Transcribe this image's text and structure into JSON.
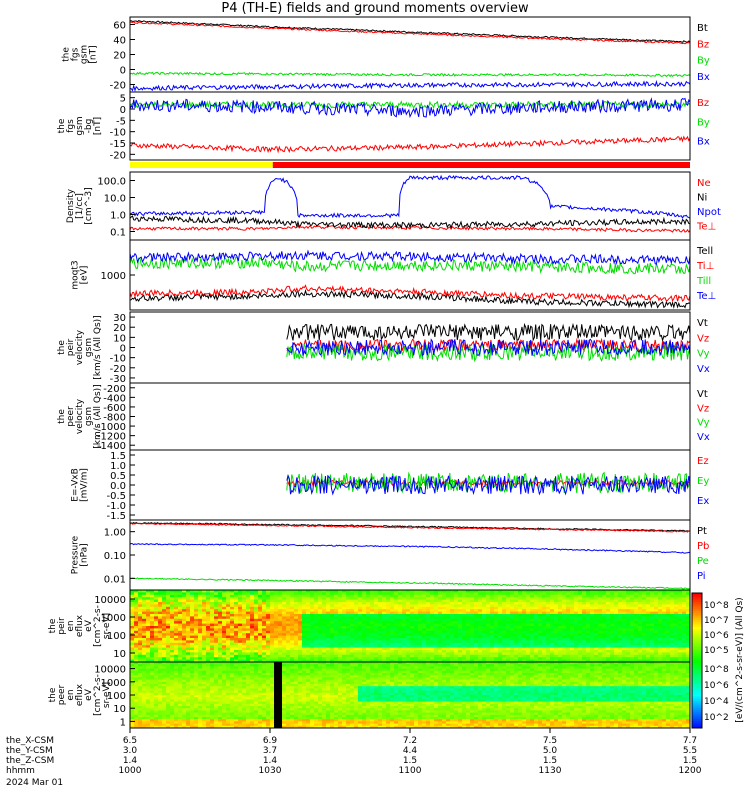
{
  "title": "P4 (TH-E) fields and ground moments overview",
  "colors": {
    "black": "#000000",
    "red": "#ff0000",
    "green": "#00dd00",
    "blue": "#0000ff",
    "yellow": "#ffff00"
  },
  "chart_data": [
    {
      "type": "line",
      "ylabel_lines": [
        "the",
        "fgs",
        "gsm",
        "[nT]"
      ],
      "yticks": [
        "60",
        "40",
        "20",
        "0",
        "-20"
      ],
      "ylim": [
        -25,
        75
      ],
      "series": [
        {
          "name": "Bt",
          "color": "#000000",
          "x": [
            0,
            0.25,
            0.5,
            0.75,
            1
          ],
          "y": [
            70,
            62,
            55,
            48,
            42
          ],
          "noise": 1
        },
        {
          "name": "Bz",
          "color": "#ff0000",
          "x": [
            0,
            0.25,
            0.5,
            0.75,
            1
          ],
          "y": [
            68,
            60,
            53,
            46,
            40
          ],
          "noise": 1
        },
        {
          "name": "By",
          "color": "#00dd00",
          "x": [
            0,
            0.25,
            0.5,
            0.75,
            1
          ],
          "y": [
            0,
            -1,
            -2,
            -2,
            -3
          ],
          "noise": 1.5
        },
        {
          "name": "Bx",
          "color": "#0000ff",
          "x": [
            0,
            0.25,
            0.5,
            0.75,
            1
          ],
          "y": [
            -20,
            -18,
            -16,
            -15,
            -14
          ],
          "noise": 3
        }
      ]
    },
    {
      "type": "line",
      "ylabel_lines": [
        "the",
        "fgs",
        "gsm",
        "-bg",
        "[nT]"
      ],
      "yticks": [
        "5",
        "0",
        "-5",
        "-10",
        "-15",
        "-20"
      ],
      "ylim": [
        -25,
        7
      ],
      "series": [
        {
          "name": "Bz",
          "color": "#ff0000",
          "x": [
            0,
            0.25,
            0.5,
            0.75,
            1
          ],
          "y": [
            -18,
            -20,
            -19,
            -17,
            -15
          ],
          "noise": 1.2
        },
        {
          "name": "By",
          "color": "#00dd00",
          "x": [
            0,
            0.25,
            0.5,
            0.75,
            1
          ],
          "y": [
            1,
            1,
            1,
            1,
            1
          ],
          "noise": 1.5
        },
        {
          "name": "Bx",
          "color": "#0000ff",
          "x": [
            0,
            0.25,
            0.5,
            0.75,
            1
          ],
          "y": [
            1,
            0,
            -2,
            0,
            1
          ],
          "noise": 3
        }
      ]
    },
    {
      "type": "line",
      "log": true,
      "ylabel_lines": [
        "Density",
        "[1/cc]",
        "[cm^-3]"
      ],
      "yticks": [
        "100.0",
        "10.0",
        "1.0",
        "0.1"
      ],
      "ylim": [
        0.05,
        200
      ],
      "series": [
        {
          "name": "Ne",
          "color": "#ff0000",
          "x": [
            0,
            0.24,
            0.3,
            0.5,
            0.7,
            1
          ],
          "y": [
            0.2,
            0.2,
            0.25,
            0.22,
            0.2,
            0.15
          ],
          "noise": 0.08
        },
        {
          "name": "Ni",
          "color": "#000000",
          "x": [
            0,
            0.24,
            0.3,
            0.5,
            0.7,
            1
          ],
          "y": [
            0.7,
            0.5,
            0.35,
            0.3,
            0.35,
            0.5
          ],
          "noise": 0.15
        },
        {
          "name": "Npot",
          "color": "#0000ff",
          "x": [
            0,
            0.24,
            0.265,
            0.3,
            0.48,
            0.5,
            0.7,
            0.75,
            1
          ],
          "y": [
            1.2,
            1.5,
            100,
            1,
            1,
            100,
            100,
            3,
            0.8
          ],
          "noise": 0.1
        },
        {
          "name": "Te⊥",
          "color": "#ff0000",
          "x": [],
          "y": []
        }
      ]
    },
    {
      "type": "line",
      "log": true,
      "ylabel_lines": [
        "moqt3",
        "[eV]"
      ],
      "yticks": [
        "1000"
      ],
      "ylim": [
        300,
        20000
      ],
      "series": [
        {
          "name": "Tell",
          "color": "#000000",
          "x": [
            0,
            0.24,
            0.3,
            0.5,
            0.7,
            1
          ],
          "y": [
            600,
            700,
            800,
            700,
            500,
            400
          ],
          "noise": 0.08
        },
        {
          "name": "Ti⊥",
          "color": "#ff0000",
          "x": [
            0,
            0.24,
            0.3,
            0.5,
            0.7,
            1
          ],
          "y": [
            800,
            900,
            1100,
            900,
            700,
            600
          ],
          "noise": 0.08
        },
        {
          "name": "Till",
          "color": "#00dd00",
          "x": [
            0,
            0.24,
            0.3,
            0.5,
            0.7,
            1
          ],
          "y": [
            5000,
            5200,
            4000,
            4500,
            4000,
            3500
          ],
          "noise": 0.15
        },
        {
          "name": "Te⊥",
          "color": "#0000ff",
          "x": [
            0,
            0.24,
            0.3,
            0.5,
            0.7,
            1
          ],
          "y": [
            7000,
            7500,
            8000,
            7500,
            6500,
            6000
          ],
          "noise": 0.12
        }
      ]
    },
    {
      "type": "line",
      "ylabel_lines": [
        "the",
        "peir",
        "velocity",
        "gsm",
        "[km/s (All Qs)]"
      ],
      "yticks": [
        "30",
        "20",
        "10",
        "0",
        "-10",
        "-20",
        "-30"
      ],
      "ylim": [
        -35,
        35
      ],
      "series": [
        {
          "name": "Vt",
          "color": "#000000",
          "x": [
            0.28,
            1
          ],
          "y": [
            15,
            15
          ],
          "noise": 8
        },
        {
          "name": "Vz",
          "color": "#ff0000",
          "x": [
            0.28,
            1
          ],
          "y": [
            2,
            2
          ],
          "noise": 6
        },
        {
          "name": "Vy",
          "color": "#00dd00",
          "x": [
            0.28,
            1
          ],
          "y": [
            -5,
            -5
          ],
          "noise": 8
        },
        {
          "name": "Vx",
          "color": "#0000ff",
          "x": [
            0.28,
            1
          ],
          "y": [
            0,
            0
          ],
          "noise": 8
        }
      ]
    },
    {
      "type": "line",
      "ylabel_lines": [
        "the",
        "peer",
        "velocity",
        "gsm",
        "[km/s (All Qs)]"
      ],
      "yticks": [
        "-200",
        "-400",
        "-600",
        "-800",
        "-1000",
        "-1200",
        "-1400"
      ],
      "ylim": [
        -1500,
        -100
      ],
      "series": [
        {
          "name": "Vt",
          "color": "#000000",
          "x": [],
          "y": []
        },
        {
          "name": "Vz",
          "color": "#ff0000",
          "x": [],
          "y": []
        },
        {
          "name": "Vy",
          "color": "#00dd00",
          "x": [],
          "y": []
        },
        {
          "name": "Vx",
          "color": "#0000ff",
          "x": [],
          "y": []
        }
      ]
    },
    {
      "type": "line",
      "ylabel_lines": [
        "E=-VxB",
        "[mV/m]"
      ],
      "yticks": [
        "1.5",
        "1.0",
        "0.5",
        "0.0",
        "-0.5",
        "-1.0",
        "-1.5"
      ],
      "ylim": [
        -1.7,
        1.7
      ],
      "series": [
        {
          "name": "Ez",
          "color": "#ff0000",
          "x": [
            0.28,
            1
          ],
          "y": [
            0.1,
            0.1
          ],
          "noise": 0.12
        },
        {
          "name": "Ey",
          "color": "#00dd00",
          "x": [
            0.28,
            1
          ],
          "y": [
            0.1,
            0.1
          ],
          "noise": 0.5
        },
        {
          "name": "Ex",
          "color": "#0000ff",
          "x": [
            0.28,
            1
          ],
          "y": [
            0,
            0
          ],
          "noise": 0.45
        }
      ]
    },
    {
      "type": "line",
      "log": true,
      "ylabel_lines": [
        "Pressure",
        "[nPa]"
      ],
      "yticks": [
        "1.00",
        "0.10",
        "0.01"
      ],
      "ylim": [
        0.008,
        2
      ],
      "series": [
        {
          "name": "Pt",
          "color": "#000000",
          "x": [
            0,
            0.25,
            0.5,
            0.75,
            1
          ],
          "y": [
            1.6,
            1.4,
            1.2,
            1.0,
            0.85
          ],
          "noise": 0.02
        },
        {
          "name": "Pb",
          "color": "#ff0000",
          "x": [
            0,
            0.25,
            0.5,
            0.75,
            1
          ],
          "y": [
            1.5,
            1.3,
            1.1,
            0.95,
            0.8
          ],
          "noise": 0.02
        },
        {
          "name": "Pe",
          "color": "#00dd00",
          "x": [
            0,
            0.25,
            0.5,
            0.75,
            1
          ],
          "y": [
            0.02,
            0.017,
            0.014,
            0.011,
            0.009
          ],
          "noise": 0.02
        },
        {
          "name": "Pi",
          "color": "#0000ff",
          "x": [
            0,
            0.25,
            0.5,
            0.75,
            1
          ],
          "y": [
            0.3,
            0.28,
            0.25,
            0.2,
            0.15
          ],
          "noise": 0.02
        }
      ]
    },
    {
      "type": "heatmap",
      "ylabel_lines": [
        "the",
        "peir",
        "en",
        "eflux",
        "eV",
        "[cm^2-s-",
        "sr-eV]"
      ],
      "yticks": [
        "10000",
        "1000",
        "100",
        "10"
      ],
      "ylim": [
        5,
        20000
      ]
    },
    {
      "type": "heatmap",
      "ylabel_lines": [
        "the",
        "peer",
        "en",
        "eflux",
        "eV",
        "[cm^2-s-",
        "sr-eV]"
      ],
      "yticks": [
        "10000",
        "1000",
        "100",
        "10",
        "1"
      ],
      "ylim": [
        1,
        20000
      ]
    }
  ],
  "mode_bar": {
    "segments": [
      {
        "x0": 0,
        "x1": 0.255,
        "color": "#ffff00"
      },
      {
        "x0": 0.255,
        "x1": 1,
        "color": "#ff0000"
      }
    ]
  },
  "colorbar": {
    "label": "[eV/(cm^2-s-sr-eV)] (All Qs)",
    "upper_ticks": [
      "10^8",
      "10^7",
      "10^6",
      "10^5"
    ],
    "lower_ticks": [
      "10^8",
      "10^6",
      "10^4",
      "10^2"
    ]
  },
  "xaxis": {
    "rows": [
      {
        "label": "the_X-CSM",
        "values": [
          "6.5",
          "6.9",
          "7.2",
          "7.5",
          "7.7"
        ]
      },
      {
        "label": "the_Y-CSM",
        "values": [
          "3.0",
          "3.7",
          "4.4",
          "5.0",
          "5.5"
        ]
      },
      {
        "label": "the_Z-CSM",
        "values": [
          "1.4",
          "1.4",
          "1.5",
          "1.5",
          "1.5"
        ]
      },
      {
        "label": "hhmm",
        "values": [
          "1000",
          "1030",
          "1100",
          "1130",
          "1200"
        ]
      }
    ],
    "date": "2024 Mar 01"
  }
}
